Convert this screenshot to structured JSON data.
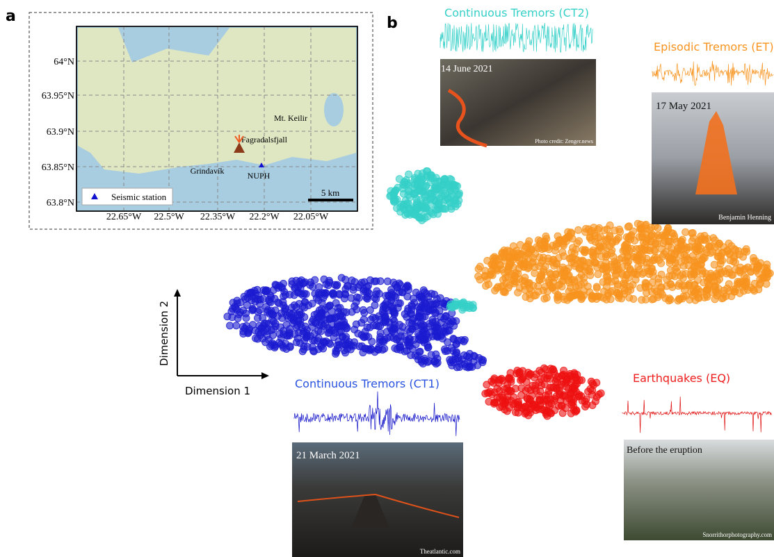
{
  "panel_a": {
    "label": "a",
    "lat_labels": [
      "64°N",
      "63.95°N",
      "63.9°N",
      "63.85°N",
      "63.8°N"
    ],
    "lon_labels": [
      "22.65°W",
      "22.5°W",
      "22.35°W",
      "22.2°W",
      "22.05°W"
    ],
    "places": [
      "Mt. Keilir",
      "Fagradalsfjall",
      "Grindavík",
      "NUPH"
    ],
    "legend": "Seismic station",
    "scale": "5 km"
  },
  "panel_b": {
    "label": "b",
    "dimension_x": "Dimension 1",
    "dimension_y": "Dimension 2",
    "clusters": [
      {
        "name": "Continuous Tremors (CT2)",
        "date": "14 June 2021",
        "credit": "Photo credit: Zenger.news"
      },
      {
        "name": "Episodic Tremors (ET)",
        "date": "17 May 2021",
        "credit": "Benjamin Henning"
      },
      {
        "name": "Continuous Tremors (CT1)",
        "date": "21 March 2021",
        "credit": "Theatlantic.com"
      },
      {
        "name": "Earthquakes (EQ)",
        "date": "Before the eruption",
        "credit": "Snorrithorphotography.com"
      }
    ]
  }
}
